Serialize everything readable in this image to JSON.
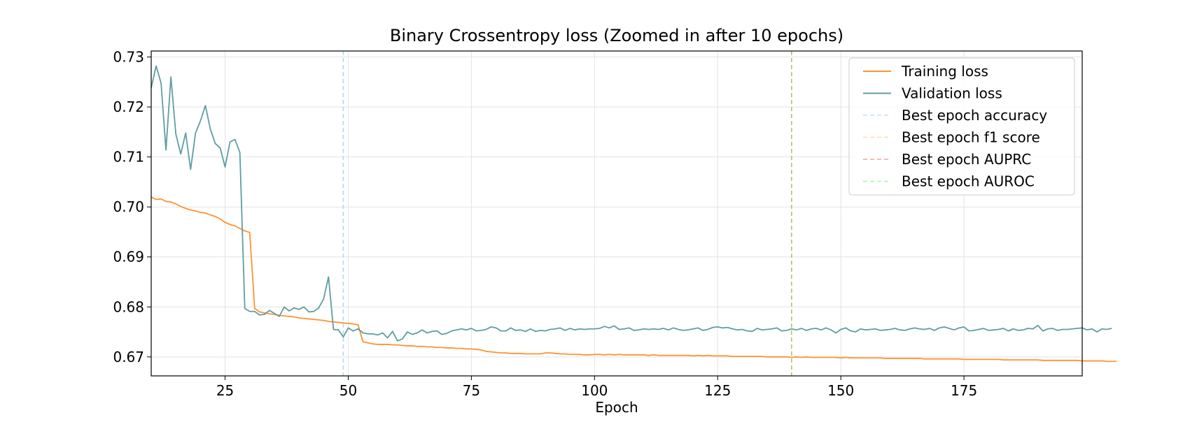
{
  "chart_data": {
    "type": "line",
    "title": "Binary Crossentropy loss (Zoomed in after 10 epochs)",
    "xlabel": "Epoch",
    "ylabel": "",
    "xlim": [
      10,
      199
    ],
    "ylim": [
      0.6662,
      0.7312
    ],
    "xticks": [
      25,
      50,
      75,
      100,
      125,
      150,
      175
    ],
    "yticks": [
      0.67,
      0.68,
      0.69,
      0.7,
      0.71,
      0.72,
      0.73
    ],
    "grid": true,
    "legend_position": "top-right",
    "x_start": 10,
    "series": [
      {
        "name": "Training loss",
        "color": "#ff9232",
        "values": [
          0.702,
          0.7015,
          0.7016,
          0.7011,
          0.701,
          0.7006,
          0.7001,
          0.6997,
          0.6994,
          0.6992,
          0.6989,
          0.6988,
          0.6984,
          0.6981,
          0.6976,
          0.6969,
          0.6965,
          0.6962,
          0.6957,
          0.6952,
          0.6949,
          0.6797,
          0.679,
          0.6788,
          0.6786,
          0.6785,
          0.6783,
          0.6782,
          0.6781,
          0.678,
          0.6778,
          0.6777,
          0.6776,
          0.6775,
          0.6774,
          0.6773,
          0.6771,
          0.677,
          0.6769,
          0.6768,
          0.6767,
          0.6766,
          0.6764,
          0.673,
          0.6728,
          0.6726,
          0.6725,
          0.6725,
          0.6725,
          0.6724,
          0.6724,
          0.6723,
          0.6722,
          0.6722,
          0.6721,
          0.6721,
          0.672,
          0.672,
          0.6719,
          0.6719,
          0.6718,
          0.6718,
          0.6717,
          0.6717,
          0.6716,
          0.6716,
          0.6715,
          0.6714,
          0.6711,
          0.671,
          0.6709,
          0.6708,
          0.6708,
          0.6707,
          0.6707,
          0.6707,
          0.6706,
          0.6706,
          0.6706,
          0.6706,
          0.6708,
          0.6708,
          0.6707,
          0.6706,
          0.6706,
          0.6705,
          0.6705,
          0.6705,
          0.6704,
          0.6704,
          0.6705,
          0.6705,
          0.6704,
          0.6705,
          0.6704,
          0.6705,
          0.6704,
          0.6704,
          0.6704,
          0.6704,
          0.6704,
          0.6703,
          0.6704,
          0.6703,
          0.6703,
          0.6703,
          0.6703,
          0.6703,
          0.6703,
          0.6703,
          0.6702,
          0.6703,
          0.6702,
          0.6703,
          0.6702,
          0.6702,
          0.6702,
          0.6702,
          0.6701,
          0.6701,
          0.6701,
          0.6701,
          0.6701,
          0.6701,
          0.6701,
          0.67,
          0.67,
          0.67,
          0.67,
          0.67,
          0.6699,
          0.67,
          0.6699,
          0.67,
          0.6699,
          0.6699,
          0.6699,
          0.6699,
          0.6699,
          0.6699,
          0.6698,
          0.6699,
          0.6698,
          0.6698,
          0.6698,
          0.6698,
          0.6698,
          0.6698,
          0.6698,
          0.6697,
          0.6697,
          0.6697,
          0.6697,
          0.6697,
          0.6697,
          0.6697,
          0.6697,
          0.6696,
          0.6696,
          0.6696,
          0.6696,
          0.6696,
          0.6696,
          0.6696,
          0.6696,
          0.6695,
          0.6695,
          0.6695,
          0.6695,
          0.6695,
          0.6695,
          0.6695,
          0.6695,
          0.6694,
          0.6694,
          0.6694,
          0.6694,
          0.6694,
          0.6694,
          0.6694,
          0.6694,
          0.6693,
          0.6693,
          0.6693,
          0.6693,
          0.6693,
          0.6693,
          0.6693,
          0.6693,
          0.6692,
          0.6692,
          0.6692,
          0.6692,
          0.6692,
          0.6691,
          0.6691,
          0.6691
        ]
      },
      {
        "name": "Validation loss",
        "color": "#5f9ea0",
        "values": [
          0.7238,
          0.7282,
          0.7248,
          0.7114,
          0.726,
          0.7146,
          0.7106,
          0.7148,
          0.7075,
          0.7148,
          0.7172,
          0.7203,
          0.7156,
          0.7127,
          0.7118,
          0.708,
          0.713,
          0.7135,
          0.7109,
          0.6797,
          0.6791,
          0.6791,
          0.6784,
          0.6785,
          0.6793,
          0.6787,
          0.6781,
          0.68,
          0.6792,
          0.6798,
          0.6795,
          0.68,
          0.679,
          0.6791,
          0.6798,
          0.6816,
          0.686,
          0.6755,
          0.6754,
          0.674,
          0.6758,
          0.6752,
          0.6756,
          0.6748,
          0.6746,
          0.6746,
          0.6744,
          0.6748,
          0.6738,
          0.6751,
          0.6732,
          0.6736,
          0.675,
          0.6745,
          0.6748,
          0.6754,
          0.6748,
          0.6751,
          0.6752,
          0.6745,
          0.6747,
          0.6752,
          0.6754,
          0.6756,
          0.6754,
          0.6757,
          0.6752,
          0.6753,
          0.6755,
          0.676,
          0.6758,
          0.6752,
          0.6752,
          0.6758,
          0.6753,
          0.6754,
          0.6751,
          0.6756,
          0.6751,
          0.6753,
          0.6752,
          0.6755,
          0.6756,
          0.6758,
          0.6753,
          0.6757,
          0.6754,
          0.6756,
          0.6755,
          0.6756,
          0.6756,
          0.6757,
          0.6761,
          0.6758,
          0.6762,
          0.6755,
          0.6756,
          0.6758,
          0.6753,
          0.6754,
          0.6756,
          0.6755,
          0.6756,
          0.6755,
          0.6757,
          0.6754,
          0.6758,
          0.6755,
          0.6753,
          0.6754,
          0.6756,
          0.6758,
          0.6753,
          0.6755,
          0.6759,
          0.676,
          0.6758,
          0.6759,
          0.6756,
          0.6754,
          0.6755,
          0.6752,
          0.6751,
          0.6757,
          0.6754,
          0.6755,
          0.6756,
          0.6758,
          0.6752,
          0.6753,
          0.6756,
          0.6754,
          0.6757,
          0.6753,
          0.6756,
          0.6757,
          0.6754,
          0.6758,
          0.6754,
          0.6748,
          0.6755,
          0.6758,
          0.6752,
          0.675,
          0.6756,
          0.6754,
          0.6755,
          0.6756,
          0.6753,
          0.6754,
          0.6755,
          0.6757,
          0.6754,
          0.6753,
          0.6756,
          0.6758,
          0.6756,
          0.6755,
          0.6757,
          0.6753,
          0.6758,
          0.676,
          0.6757,
          0.6754,
          0.6758,
          0.676,
          0.6752,
          0.6753,
          0.6755,
          0.6757,
          0.6753,
          0.6754,
          0.6755,
          0.6757,
          0.6752,
          0.6756,
          0.6753,
          0.6754,
          0.6757,
          0.6756,
          0.6763,
          0.6752,
          0.6756,
          0.6757,
          0.6753,
          0.6755,
          0.6755,
          0.6756,
          0.6757,
          0.6758,
          0.6754,
          0.6756,
          0.675,
          0.6756,
          0.6755,
          0.6757
        ]
      }
    ],
    "vlines": [
      {
        "name": "Best epoch accuracy",
        "x": 49,
        "color": "#add8e6",
        "visible": true
      },
      {
        "name": "Best epoch f1 score",
        "x": 140,
        "color": "#ffd28c",
        "visible": true
      },
      {
        "name": "Best epoch AUPRC",
        "x": 140,
        "color": "#f08080",
        "visible": false
      },
      {
        "name": "Best epoch AUROC",
        "x": 140,
        "color": "#90ee90",
        "visible": true
      }
    ]
  }
}
